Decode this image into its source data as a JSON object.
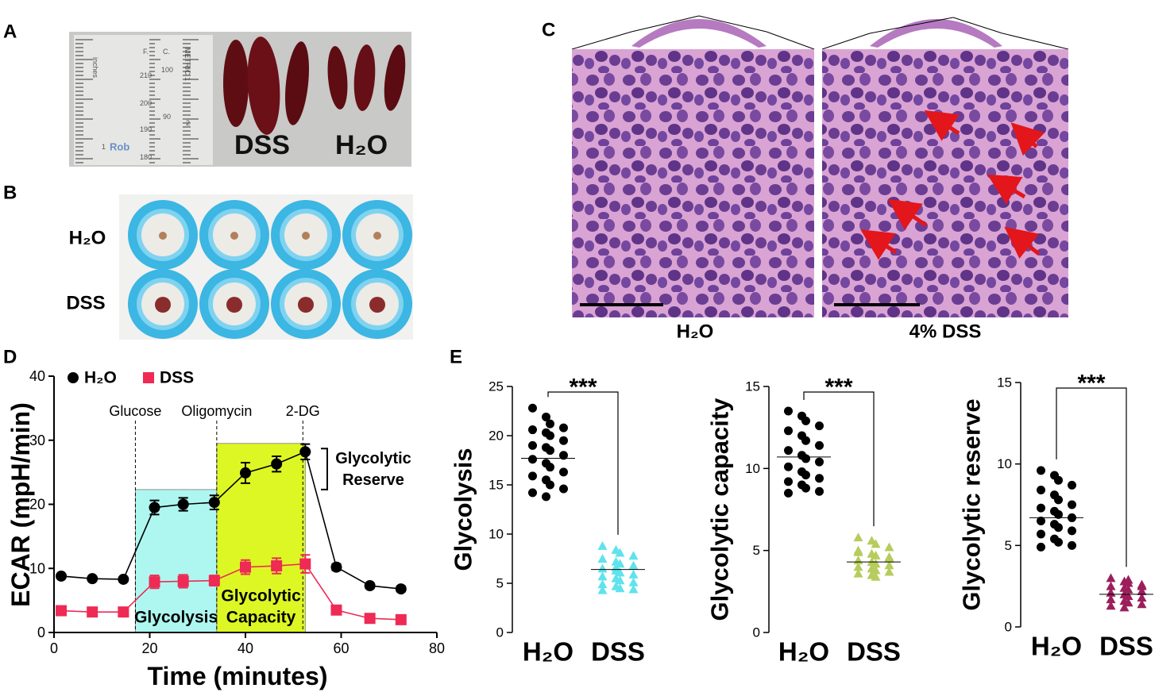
{
  "panels": {
    "letters": [
      "A",
      "B",
      "C",
      "D",
      "E"
    ],
    "A": {
      "texts": [
        "DSS",
        "H₂O"
      ],
      "ruler": [
        "inches",
        "F.",
        "C.",
        "METRIC 1",
        "210",
        "200",
        "190",
        "180",
        "100",
        "90",
        "1",
        "2",
        "Rob"
      ]
    },
    "B": {
      "rows": [
        "H₂O",
        "DSS"
      ]
    },
    "C": {
      "captions": [
        "H₂O",
        "4% DSS"
      ]
    }
  },
  "chart_data": [
    {
      "type": "line",
      "xlabel": "Time (minutes)",
      "ylabel": "ECAR (mpH/min)",
      "xlim": [
        0,
        80
      ],
      "xticks": [
        0,
        20,
        40,
        60,
        80
      ],
      "ylim": [
        0,
        40
      ],
      "yticks": [
        0,
        10,
        20,
        30,
        40
      ],
      "x": [
        1.5,
        8,
        14.5,
        21,
        27,
        33.5,
        40,
        46.5,
        52.5,
        59,
        66,
        72.5
      ],
      "series": [
        {
          "name": "H₂O",
          "color": "#000000",
          "marker": "circle",
          "values": [
            8.8,
            8.4,
            8.3,
            19.5,
            20.0,
            20.3,
            24.9,
            26.3,
            28.2,
            10.2,
            7.3,
            6.8
          ],
          "errors": [
            0.3,
            0.3,
            0.3,
            1.1,
            1.0,
            1.1,
            1.6,
            1.2,
            1.2,
            0.5,
            0.4,
            0.4
          ]
        },
        {
          "name": "DSS",
          "color": "#ee2a55",
          "marker": "square",
          "values": [
            3.4,
            3.2,
            3.2,
            7.9,
            8.0,
            8.1,
            10.2,
            10.4,
            10.7,
            3.5,
            2.2,
            2.0
          ],
          "errors": [
            0.3,
            0.3,
            0.3,
            1.0,
            1.0,
            0.8,
            1.1,
            1.2,
            1.4,
            0.5,
            0.4,
            0.4
          ]
        }
      ],
      "injections": [
        {
          "x": 17,
          "label": "Glucose"
        },
        {
          "x": 34,
          "label": "Oligomycin"
        },
        {
          "x": 52,
          "label": "2-DG"
        }
      ],
      "regions": [
        {
          "label": [
            "Glycolysis"
          ],
          "x": [
            17,
            34
          ],
          "top": 22.3,
          "color": "#aef7f0"
        },
        {
          "label": [
            "Glycolytic",
            "Capacity"
          ],
          "x": [
            34,
            52.5
          ],
          "top": 29.5,
          "color": "#ddf724"
        }
      ],
      "reserve": {
        "label": [
          "Glycolytic",
          "Reserve"
        ],
        "range": [
          22.3,
          28.7
        ]
      }
    },
    {
      "type": "strip",
      "ylabel": "Glycolysis",
      "categories": [
        "H₂O",
        "DSS"
      ],
      "ylim": [
        0,
        25
      ],
      "yticks": [
        0,
        5,
        10,
        15,
        20,
        25
      ],
      "significance": "***",
      "groups": [
        {
          "color": "#000000",
          "marker": "circle",
          "mean": 17.7,
          "values": [
            22.8,
            21.9,
            21.2,
            20.8,
            20.6,
            20.3,
            20.0,
            19.5,
            19.0,
            18.8,
            18.5,
            18.0,
            17.6,
            17.2,
            16.8,
            16.3,
            15.9,
            15.5,
            15.0,
            14.6,
            14.2,
            13.8
          ]
        },
        {
          "color": "#5fe3ec",
          "marker": "triangle",
          "mean": 6.4,
          "values": [
            8.8,
            8.4,
            8.1,
            7.8,
            7.5,
            7.2,
            7.0,
            6.8,
            6.5,
            6.3,
            6.1,
            5.9,
            5.7,
            5.5,
            5.3,
            5.1,
            4.9,
            4.7,
            4.5,
            4.4,
            4.3,
            6.6
          ]
        }
      ]
    },
    {
      "type": "strip",
      "ylabel": "Glycolytic capacity",
      "categories": [
        "H₂O",
        "DSS"
      ],
      "ylim": [
        0,
        15
      ],
      "yticks": [
        0,
        5,
        10,
        15
      ],
      "significance": "***",
      "groups": [
        {
          "color": "#000000",
          "marker": "circle",
          "mean": 10.7,
          "values": [
            13.5,
            13.2,
            12.9,
            12.6,
            12.3,
            12.0,
            11.7,
            11.4,
            11.1,
            10.8,
            10.6,
            10.4,
            10.1,
            9.8,
            9.6,
            9.4,
            9.2,
            9.0,
            8.8,
            8.6,
            8.5
          ]
        },
        {
          "color": "#b6cc5c",
          "marker": "triangle",
          "mean": 4.3,
          "values": [
            5.8,
            5.6,
            5.4,
            5.2,
            5.0,
            4.8,
            4.7,
            4.5,
            4.4,
            4.3,
            4.2,
            4.1,
            4.0,
            3.9,
            3.8,
            3.7,
            3.6,
            3.5,
            3.4,
            4.6,
            4.9
          ]
        }
      ]
    },
    {
      "type": "strip",
      "ylabel": "Glycolytic reserve",
      "categories": [
        "H₂O",
        "DSS"
      ],
      "ylim": [
        0,
        15
      ],
      "yticks": [
        0,
        5,
        10,
        15
      ],
      "significance": "***",
      "groups": [
        {
          "color": "#000000",
          "marker": "circle",
          "mean": 6.7,
          "values": [
            9.6,
            9.3,
            9.0,
            8.7,
            8.4,
            8.1,
            7.8,
            7.5,
            7.3,
            7.1,
            6.9,
            6.7,
            6.5,
            6.3,
            6.1,
            5.9,
            5.7,
            5.4,
            5.2,
            5.0,
            4.9
          ]
        },
        {
          "color": "#9c1f5c",
          "marker": "triangle",
          "mean": 2.0,
          "values": [
            3.0,
            2.8,
            2.7,
            2.6,
            2.5,
            2.4,
            2.3,
            2.2,
            2.1,
            2.0,
            1.9,
            1.8,
            1.7,
            1.6,
            1.5,
            1.4,
            1.3,
            1.2,
            2.9,
            2.5
          ]
        }
      ]
    }
  ]
}
